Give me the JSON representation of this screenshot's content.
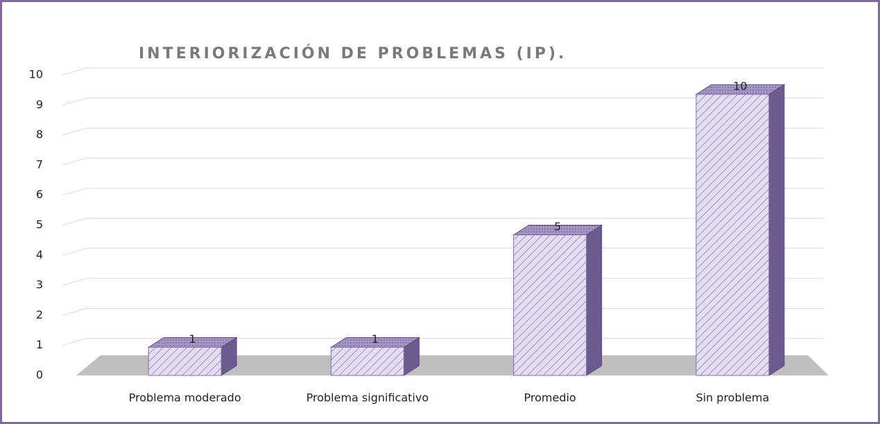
{
  "chart_data": {
    "type": "bar",
    "title": "INTERIORIZACIÓN DE PROBLEMAS  (IP).",
    "categories": [
      "Problema moderado",
      "Problema significativo",
      "Promedio",
      "Sin problema"
    ],
    "values": [
      1,
      1,
      5,
      10
    ],
    "color": "#e4dcf2",
    "ylim": [
      0,
      10
    ],
    "yticks": [
      0,
      1,
      2,
      3,
      4,
      5,
      6,
      7,
      8,
      9,
      10
    ],
    "grid": true
  }
}
